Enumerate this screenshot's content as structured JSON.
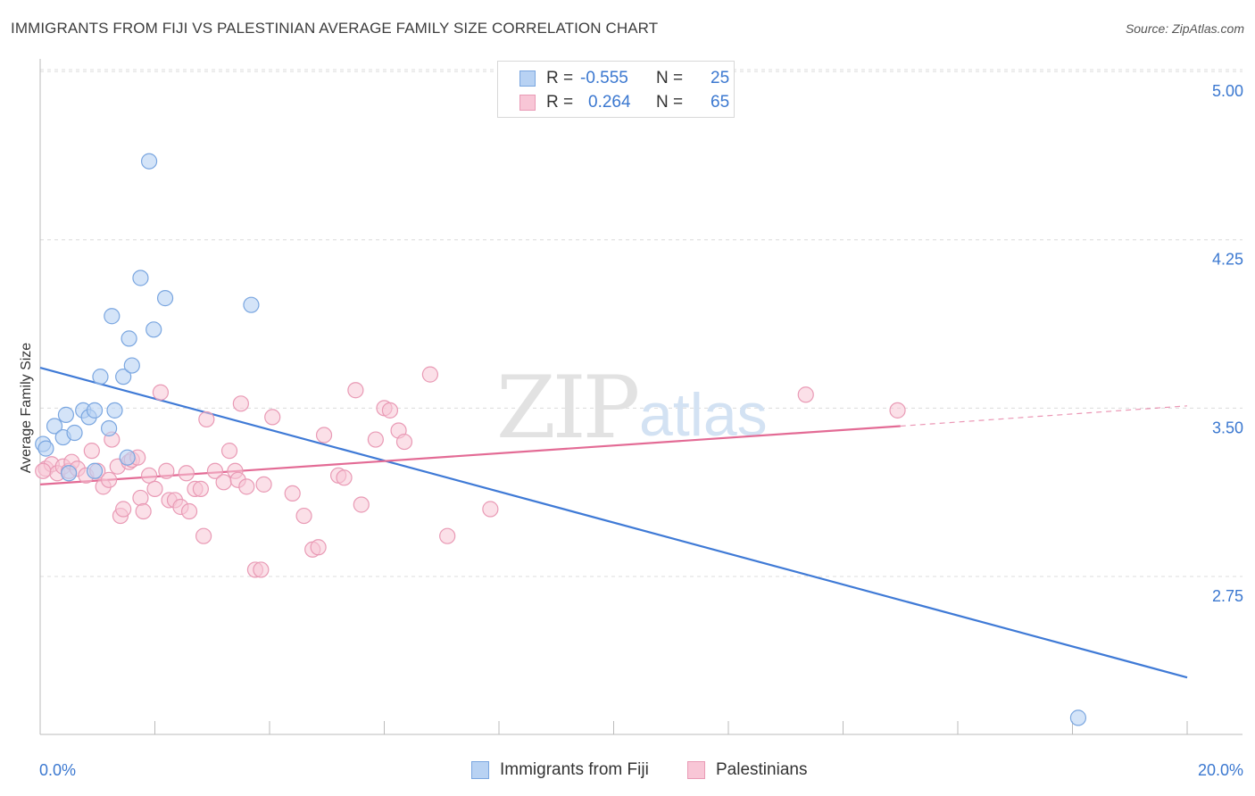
{
  "header": {
    "title": "IMMIGRANTS FROM FIJI VS PALESTINIAN AVERAGE FAMILY SIZE CORRELATION CHART",
    "source": "Source: ZipAtlas.com"
  },
  "watermark": {
    "zip": "ZIP",
    "atlas": "atlas"
  },
  "legend": {
    "r_label": "R =",
    "n_label": "N =",
    "rows": [
      {
        "r": "-0.555",
        "n": "25",
        "color": "#a9c8f0"
      },
      {
        "r": "0.264",
        "n": "65",
        "color": "#f5b8cd"
      }
    ]
  },
  "bottom_legend": {
    "fiji": "Immigrants from Fiji",
    "pal": "Palestinians"
  },
  "colors": {
    "fiji_fill": "#b8d2f3",
    "fiji_stroke": "#7aa6e0",
    "fiji_line": "#3f7ad6",
    "pal_fill": "#f8c6d6",
    "pal_stroke": "#e99ab5",
    "pal_line": "#e36b95",
    "axis_label": "#3b78d0"
  },
  "chart_data": {
    "type": "scatter",
    "title": "IMMIGRANTS FROM FIJI VS PALESTINIAN AVERAGE FAMILY SIZE CORRELATION CHART",
    "xlabel": "",
    "ylabel": "Average Family Size",
    "xlim": [
      0,
      20
    ],
    "ylim": [
      2.05,
      5.08
    ],
    "x_tick_labels": [
      "0.0%",
      "20.0%"
    ],
    "y_ticks": [
      2.75,
      3.5,
      4.25,
      5.0
    ],
    "y_tick_labels": [
      "2.75",
      "3.50",
      "4.25",
      "5.00"
    ],
    "grid": true,
    "series": [
      {
        "name": "Immigrants from Fiji",
        "r": -0.555,
        "n": 25,
        "points": [
          [
            0.05,
            3.34
          ],
          [
            0.1,
            3.32
          ],
          [
            0.25,
            3.42
          ],
          [
            0.45,
            3.47
          ],
          [
            0.4,
            3.37
          ],
          [
            0.6,
            3.39
          ],
          [
            0.75,
            3.49
          ],
          [
            0.85,
            3.46
          ],
          [
            0.95,
            3.49
          ],
          [
            1.2,
            3.41
          ],
          [
            1.3,
            3.49
          ],
          [
            1.05,
            3.64
          ],
          [
            1.25,
            3.91
          ],
          [
            1.45,
            3.64
          ],
          [
            1.55,
            3.81
          ],
          [
            1.6,
            3.69
          ],
          [
            1.75,
            4.08
          ],
          [
            1.9,
            4.6
          ],
          [
            1.98,
            3.85
          ],
          [
            2.18,
            3.99
          ],
          [
            3.68,
            3.96
          ],
          [
            1.52,
            3.28
          ],
          [
            0.5,
            3.21
          ],
          [
            0.95,
            3.22
          ],
          [
            18.1,
            2.12
          ]
        ],
        "trend": {
          "x": [
            0,
            20
          ],
          "y": [
            3.68,
            2.3
          ]
        }
      },
      {
        "name": "Palestinians",
        "r": 0.264,
        "n": 65,
        "points": [
          [
            0.1,
            3.23
          ],
          [
            0.2,
            3.25
          ],
          [
            0.3,
            3.21
          ],
          [
            0.4,
            3.24
          ],
          [
            0.5,
            3.22
          ],
          [
            0.55,
            3.26
          ],
          [
            0.65,
            3.23
          ],
          [
            0.8,
            3.2
          ],
          [
            0.9,
            3.31
          ],
          [
            1.0,
            3.22
          ],
          [
            1.1,
            3.15
          ],
          [
            1.2,
            3.18
          ],
          [
            1.25,
            3.36
          ],
          [
            1.35,
            3.24
          ],
          [
            1.4,
            3.02
          ],
          [
            1.45,
            3.05
          ],
          [
            1.55,
            3.26
          ],
          [
            1.6,
            3.27
          ],
          [
            1.7,
            3.28
          ],
          [
            1.75,
            3.1
          ],
          [
            1.8,
            3.04
          ],
          [
            1.9,
            3.2
          ],
          [
            2.0,
            3.14
          ],
          [
            2.1,
            3.57
          ],
          [
            2.2,
            3.22
          ],
          [
            2.25,
            3.09
          ],
          [
            2.35,
            3.09
          ],
          [
            2.45,
            3.06
          ],
          [
            2.55,
            3.21
          ],
          [
            2.6,
            3.04
          ],
          [
            2.7,
            3.14
          ],
          [
            2.8,
            3.14
          ],
          [
            2.85,
            2.93
          ],
          [
            2.9,
            3.45
          ],
          [
            3.05,
            3.22
          ],
          [
            3.2,
            3.17
          ],
          [
            3.3,
            3.31
          ],
          [
            3.4,
            3.22
          ],
          [
            3.45,
            3.18
          ],
          [
            3.5,
            3.52
          ],
          [
            3.6,
            3.15
          ],
          [
            3.75,
            2.78
          ],
          [
            3.85,
            2.78
          ],
          [
            3.9,
            3.16
          ],
          [
            4.05,
            3.46
          ],
          [
            4.4,
            3.12
          ],
          [
            4.6,
            3.02
          ],
          [
            4.75,
            2.87
          ],
          [
            4.85,
            2.88
          ],
          [
            4.95,
            3.38
          ],
          [
            5.2,
            3.2
          ],
          [
            5.3,
            3.19
          ],
          [
            5.5,
            3.58
          ],
          [
            5.6,
            3.07
          ],
          [
            5.85,
            3.36
          ],
          [
            6.0,
            3.5
          ],
          [
            6.1,
            3.49
          ],
          [
            6.25,
            3.4
          ],
          [
            6.35,
            3.35
          ],
          [
            6.8,
            3.65
          ],
          [
            7.1,
            2.93
          ],
          [
            7.85,
            3.05
          ],
          [
            13.35,
            3.56
          ],
          [
            14.95,
            3.49
          ],
          [
            0.05,
            3.22
          ]
        ],
        "trend": {
          "x": [
            0,
            15
          ],
          "y": [
            3.16,
            3.42
          ]
        },
        "trend_extension": {
          "x": [
            15,
            20
          ],
          "y": [
            3.42,
            3.51
          ]
        }
      }
    ]
  }
}
